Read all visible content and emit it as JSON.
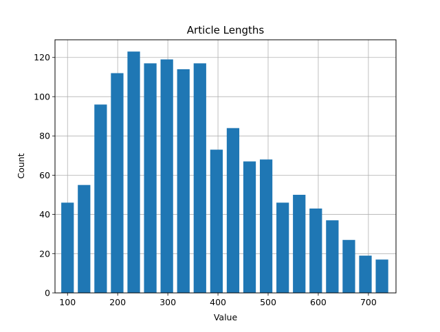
{
  "chart_data": {
    "type": "bar",
    "title": "Article Lengths",
    "xlabel": "Value",
    "ylabel": "Count",
    "xlim": [
      75,
      755
    ],
    "ylim": [
      0,
      129
    ],
    "xticks": [
      100,
      200,
      300,
      400,
      500,
      600,
      700
    ],
    "yticks": [
      0,
      20,
      40,
      60,
      80,
      100,
      120
    ],
    "grid": true,
    "bar_color": "#1f77b4",
    "bar_width": 25,
    "x": [
      100,
      133,
      166,
      199,
      232,
      265,
      298,
      331,
      364,
      397,
      430,
      463,
      496,
      529,
      562,
      595,
      628,
      661,
      694,
      727
    ],
    "values": [
      46,
      55,
      96,
      112,
      123,
      117,
      119,
      114,
      117,
      73,
      84,
      67,
      68,
      46,
      50,
      43,
      37,
      27,
      19,
      17
    ]
  }
}
